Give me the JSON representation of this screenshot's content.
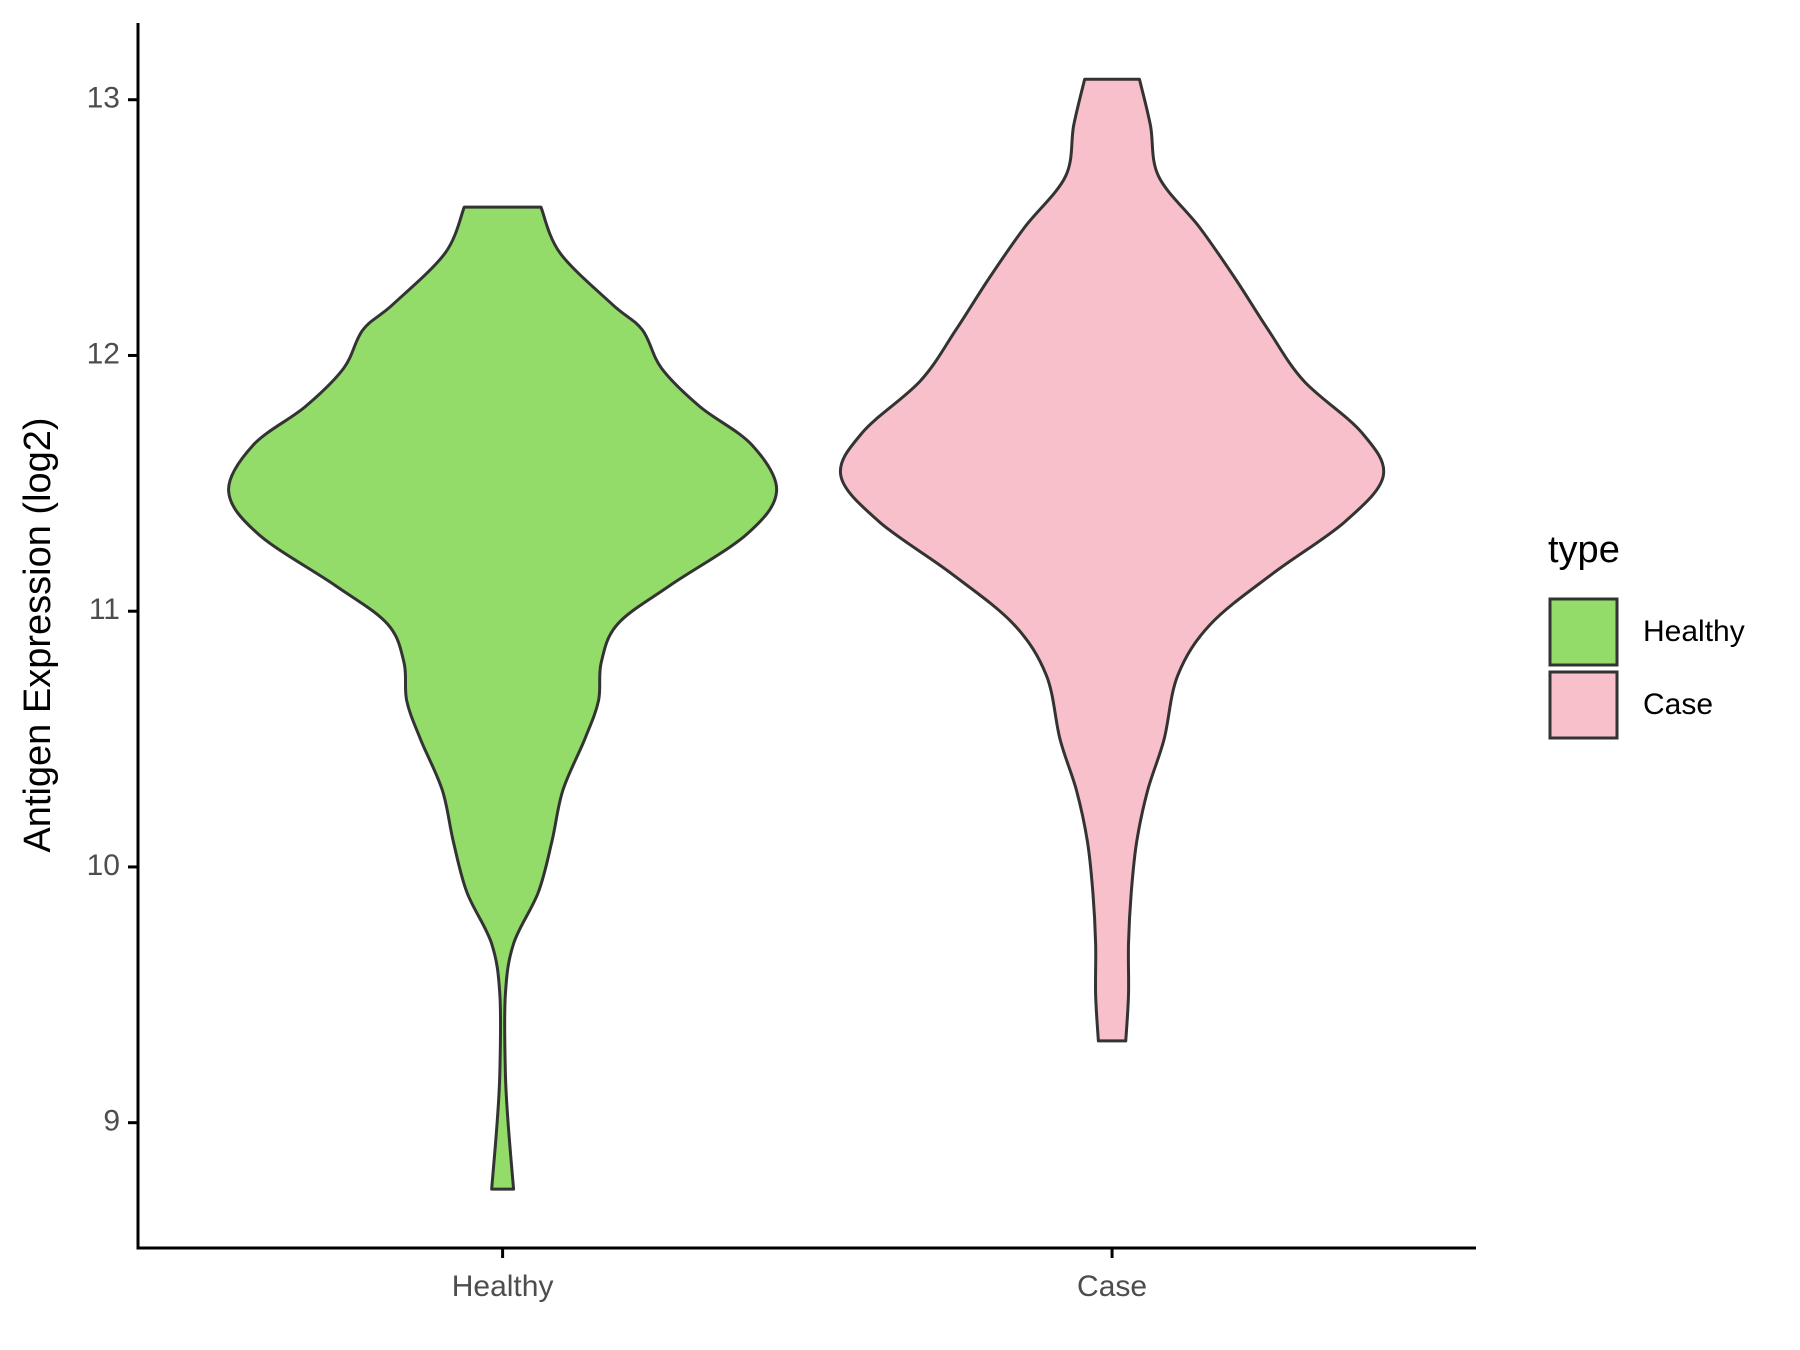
{
  "chart_data": {
    "type": "violin",
    "y_label": "Antigen Expression (log2)",
    "categories": [
      "Healthy",
      "Case"
    ],
    "ylim": [
      8.51,
      13.3
    ],
    "yticks": [
      9,
      10,
      11,
      12,
      13
    ],
    "legend_title": "type",
    "legend": "right",
    "series": [
      {
        "name": "Healthy",
        "color": "#93dc6a",
        "values": [
          12.58,
          12.4,
          12.2,
          12.1,
          11.95,
          11.8,
          11.65,
          11.47,
          11.3,
          11.1,
          10.95,
          10.8,
          10.65,
          10.5,
          10.3,
          10.1,
          9.9,
          9.7,
          9.5,
          9.2,
          9.0,
          8.74
        ],
        "density": [
          0.14,
          0.21,
          0.4,
          0.51,
          0.58,
          0.72,
          0.91,
          1.0,
          0.89,
          0.61,
          0.42,
          0.36,
          0.35,
          0.3,
          0.22,
          0.18,
          0.13,
          0.04,
          0.01,
          0.01,
          0.02,
          0.04
        ]
      },
      {
        "name": "Case",
        "color": "#f7c0cb",
        "values": [
          13.08,
          12.9,
          12.7,
          12.5,
          12.3,
          12.1,
          11.9,
          11.7,
          11.53,
          11.35,
          11.15,
          10.95,
          10.75,
          10.5,
          10.3,
          10.1,
          9.9,
          9.7,
          9.5,
          9.32
        ],
        "density": [
          0.1,
          0.14,
          0.17,
          0.32,
          0.45,
          0.57,
          0.7,
          0.91,
          0.99,
          0.85,
          0.59,
          0.36,
          0.24,
          0.19,
          0.13,
          0.09,
          0.07,
          0.06,
          0.06,
          0.05
        ]
      }
    ]
  }
}
